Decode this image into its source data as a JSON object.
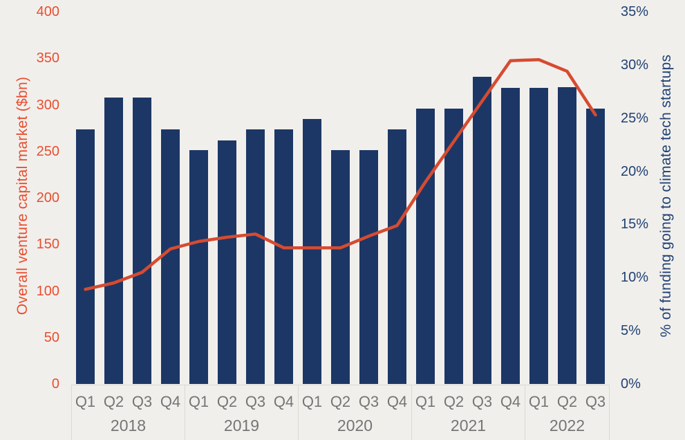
{
  "chart_data": {
    "type": "bar+line",
    "categories": [
      "2018-Q1",
      "2018-Q2",
      "2018-Q3",
      "2018-Q4",
      "2019-Q1",
      "2019-Q2",
      "2019-Q3",
      "2019-Q4",
      "2020-Q1",
      "2020-Q2",
      "2020-Q3",
      "2020-Q4",
      "2021-Q1",
      "2021-Q2",
      "2021-Q3",
      "2021-Q4",
      "2022-Q1",
      "2022-Q2",
      "2022-Q3"
    ],
    "year_groups": [
      {
        "year": "2018",
        "quarters": [
          "Q1",
          "Q2",
          "Q3",
          "Q4"
        ]
      },
      {
        "year": "2019",
        "quarters": [
          "Q1",
          "Q2",
          "Q3",
          "Q4"
        ]
      },
      {
        "year": "2020",
        "quarters": [
          "Q1",
          "Q2",
          "Q3",
          "Q4"
        ]
      },
      {
        "year": "2021",
        "quarters": [
          "Q1",
          "Q2",
          "Q3",
          "Q4"
        ]
      },
      {
        "year": "2022",
        "quarters": [
          "Q1",
          "Q2",
          "Q3"
        ]
      }
    ],
    "series": [
      {
        "name": "Overall venture capital market ($bn)",
        "type": "bar",
        "axis": "left",
        "color": "#1c3766",
        "values": [
          274,
          308,
          308,
          274,
          251,
          262,
          274,
          274,
          285,
          251,
          251,
          274,
          296,
          296,
          330,
          318,
          318,
          319,
          296
        ]
      },
      {
        "name": "% of funding going to climate tech startups",
        "type": "line",
        "axis": "right",
        "color": "#d64b31",
        "values": [
          8.9,
          9.5,
          10.5,
          12.7,
          13.4,
          13.8,
          14.1,
          12.8,
          12.8,
          12.8,
          13.9,
          14.9,
          19.0,
          22.8,
          26.6,
          30.4,
          30.5,
          29.4,
          25.3
        ]
      }
    ],
    "left_axis": {
      "title": "Overall venture capital market ($bn)",
      "color": "#e84e2f",
      "max": 400,
      "min": 0,
      "ticks": [
        {
          "label": "400",
          "value": 400
        },
        {
          "label": "350",
          "value": 350
        },
        {
          "label": "300",
          "value": 300
        },
        {
          "label": "250",
          "value": 250
        },
        {
          "label": "200",
          "value": 200
        },
        {
          "label": "150",
          "value": 150
        },
        {
          "label": "100",
          "value": 100
        },
        {
          "label": "50",
          "value": 50
        },
        {
          "label": "0",
          "value": 0
        }
      ]
    },
    "right_axis": {
      "title": "% of funding going to climate tech startups",
      "color": "#204173",
      "max": 35,
      "min": 0,
      "ticks": [
        {
          "label": "35%",
          "value": 35
        },
        {
          "label": "30%",
          "value": 30
        },
        {
          "label": "25%",
          "value": 25
        },
        {
          "label": "20%",
          "value": 20
        },
        {
          "label": "15%",
          "value": 15
        },
        {
          "label": "10%",
          "value": 10
        },
        {
          "label": "5%",
          "value": 5
        },
        {
          "label": "0%",
          "value": 0
        }
      ]
    },
    "x_axis": {
      "tick_color": "#757575"
    },
    "background": "#f1efec",
    "divider_color": "#dbd8d4",
    "bar_color": "#1c3766",
    "line_color": "#d64b31",
    "grid": false,
    "legend": false
  }
}
